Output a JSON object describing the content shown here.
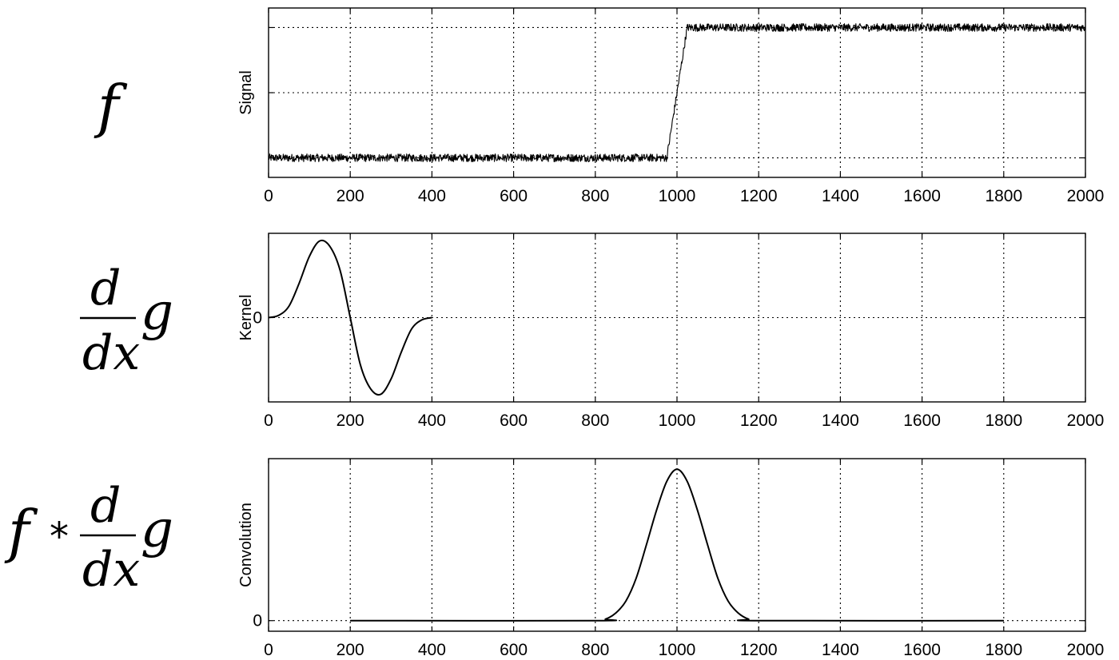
{
  "formulas": {
    "f": "f",
    "d": "d",
    "dx": "dx",
    "g": "g",
    "star": "*"
  },
  "chart_data": [
    {
      "type": "line",
      "ylabel": "Signal",
      "xlim": [
        0,
        2000
      ],
      "ylim": [
        -0.15,
        1.15
      ],
      "x_ticks": [
        0,
        200,
        400,
        600,
        800,
        1000,
        1200,
        1400,
        1600,
        1800,
        2000
      ],
      "x_tick_labels": [
        "0",
        "200",
        "400",
        "600",
        "800",
        "1000",
        "1200",
        "1400",
        "1600",
        "1800",
        "2000"
      ],
      "y_grid": [
        0,
        0.5,
        1
      ],
      "y_tick_labels": [],
      "grid": true,
      "series": [
        {
          "noise_amplitude": 0.03,
          "x": [
            0,
            975,
            1000,
            1025,
            2000
          ],
          "y": [
            0,
            0,
            0.5,
            1,
            1
          ]
        }
      ]
    },
    {
      "type": "line",
      "ylabel": "Kernel",
      "xlim": [
        0,
        2000
      ],
      "ylim": [
        -1.1,
        1.1
      ],
      "x_ticks": [
        0,
        200,
        400,
        600,
        800,
        1000,
        1200,
        1400,
        1600,
        1800,
        2000
      ],
      "x_tick_labels": [
        "0",
        "200",
        "400",
        "600",
        "800",
        "1000",
        "1200",
        "1400",
        "1600",
        "1800",
        "2000"
      ],
      "y_grid": [
        0
      ],
      "y_tick_labels": [
        "0"
      ],
      "grid": true,
      "series": [
        {
          "x": [
            0,
            25,
            50,
            75,
            100,
            125,
            150,
            175,
            200,
            225,
            250,
            275,
            300,
            325,
            350,
            375,
            400
          ],
          "y": [
            0,
            0.03,
            0.15,
            0.45,
            0.8,
            1.0,
            0.93,
            0.62,
            0,
            -0.62,
            -0.93,
            -1.0,
            -0.8,
            -0.45,
            -0.15,
            -0.03,
            0
          ]
        }
      ]
    },
    {
      "type": "line",
      "ylabel": "Convolution",
      "xlim": [
        0,
        2000
      ],
      "ylim": [
        -0.07,
        1.07
      ],
      "x_ticks": [
        0,
        200,
        400,
        600,
        800,
        1000,
        1200,
        1400,
        1600,
        1800,
        2000
      ],
      "x_tick_labels": [
        "0",
        "200",
        "400",
        "600",
        "800",
        "1000",
        "1200",
        "1400",
        "1600",
        "1800",
        "2000"
      ],
      "y_grid": [
        0
      ],
      "y_tick_labels": [
        "0"
      ],
      "grid": true,
      "series": [
        {
          "x": [
            200,
            800,
            825,
            850,
            875,
            900,
            925,
            950,
            975,
            1000,
            1025,
            1050,
            1075,
            1100,
            1125,
            1150,
            1175,
            1200,
            1800
          ],
          "y": [
            0,
            0,
            0.01,
            0.05,
            0.13,
            0.28,
            0.5,
            0.73,
            0.92,
            1.0,
            0.92,
            0.73,
            0.5,
            0.28,
            0.13,
            0.05,
            0.01,
            0,
            0
          ]
        }
      ]
    }
  ]
}
